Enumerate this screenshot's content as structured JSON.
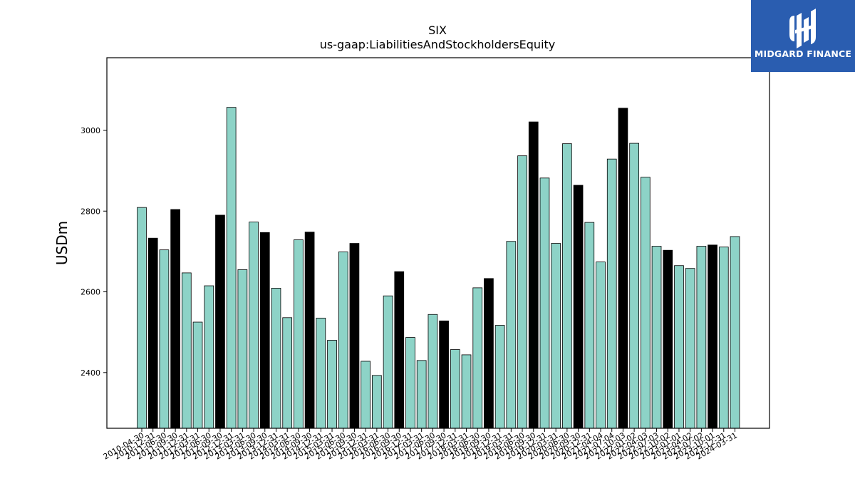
{
  "logo": {
    "text": "MIDGARD FINANCE",
    "icon": "midgard-finance-logo-icon",
    "background": "#2a5db0"
  },
  "chart_data": {
    "type": "bar",
    "title": "SIX",
    "subtitle": "us-gaap:LiabilitiesAndStockholdersEquity",
    "xlabel": "",
    "ylabel": "USDm",
    "ylim": [
      2262,
      3180
    ],
    "yticks": [
      2400,
      2600,
      2800,
      3000
    ],
    "grid": false,
    "colors": {
      "fill": "#8dd3c7",
      "highlight": "#000000",
      "edge": "#000000"
    },
    "categories": [
      "2010-04-30",
      "2010-12-31",
      "2011-06-30",
      "2011-09-30",
      "2011-12-31",
      "2012-03-31",
      "2012-06-30",
      "2012-09-30",
      "2012-12-31",
      "2013-03-31",
      "2013-06-30",
      "2013-09-30",
      "2013-12-31",
      "2014-03-31",
      "2014-06-30",
      "2014-09-30",
      "2014-12-31",
      "2015-03-31",
      "2015-06-30",
      "2015-09-30",
      "2015-12-31",
      "2016-03-31",
      "2016-06-30",
      "2016-09-30",
      "2016-12-31",
      "2017-03-31",
      "2017-06-30",
      "2017-09-30",
      "2017-12-31",
      "2018-03-31",
      "2018-06-30",
      "2018-09-30",
      "2018-12-31",
      "2019-03-31",
      "2019-06-30",
      "2019-09-30",
      "2019-12-31",
      "2020-03-31",
      "2020-06-30",
      "2020-09-30",
      "2020-12-31",
      "2021-04-04",
      "2021-07-04",
      "2021-10-03",
      "2022-01-02",
      "2022-04-03",
      "2022-07-03",
      "2022-10-02",
      "2023-01-01",
      "2023-04-02",
      "2023-07-02",
      "2023-10-01",
      "2023-12-31",
      "2024-03-31"
    ],
    "values": [
      2809,
      2733,
      2704,
      2804,
      2647,
      2525,
      2615,
      2790,
      3057,
      2655,
      2773,
      2747,
      2609,
      2536,
      2729,
      2748,
      2535,
      2480,
      2699,
      2720,
      2428,
      2393,
      2590,
      2650,
      2487,
      2430,
      2544,
      2528,
      2457,
      2444,
      2610,
      2633,
      2517,
      2725,
      2937,
      3021,
      2882,
      2720,
      2967,
      2864,
      2772,
      2674,
      2929,
      3055,
      2968,
      2884,
      2713,
      2703,
      2665,
      2658,
      2713,
      2716,
      2711,
      2737
    ],
    "highlight": [
      false,
      true,
      false,
      true,
      false,
      false,
      false,
      true,
      false,
      false,
      false,
      true,
      false,
      false,
      false,
      true,
      false,
      false,
      false,
      true,
      false,
      false,
      false,
      true,
      false,
      false,
      false,
      true,
      false,
      false,
      false,
      true,
      false,
      false,
      false,
      true,
      false,
      false,
      false,
      true,
      false,
      false,
      false,
      true,
      false,
      false,
      false,
      true,
      false,
      false,
      false,
      true,
      false,
      false
    ]
  }
}
